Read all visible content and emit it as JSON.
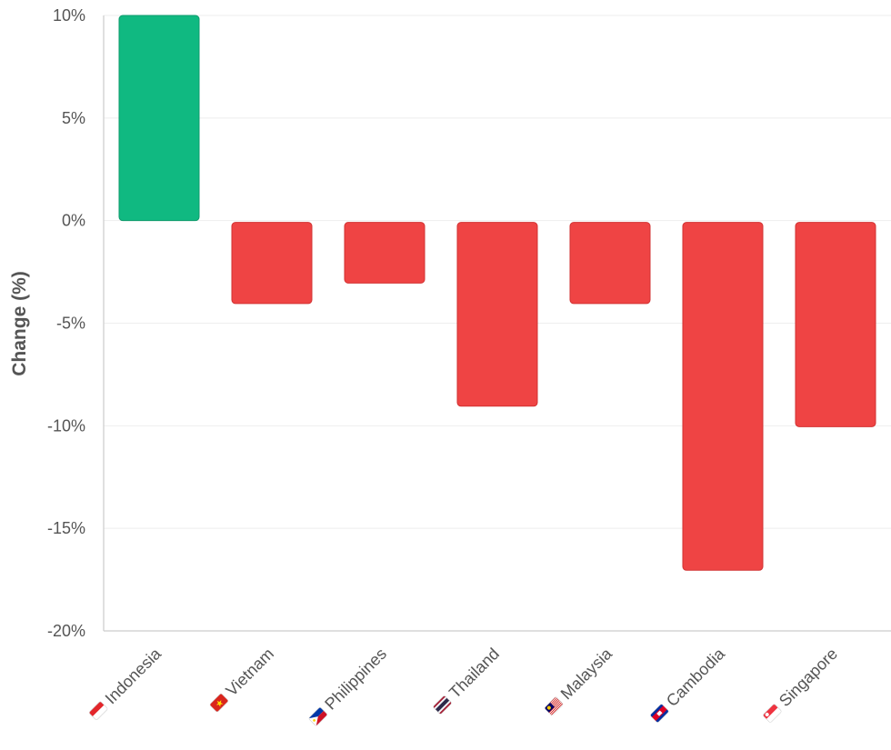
{
  "chart_data": {
    "type": "bar",
    "title": "",
    "xlabel": "",
    "ylabel": "Change (%)",
    "ylim": [
      -20,
      10
    ],
    "yticks": [
      10,
      5,
      0,
      -5,
      -10,
      -15,
      -20
    ],
    "ytick_labels": [
      "10%",
      "5%",
      "0%",
      "-5%",
      "-10%",
      "-15%",
      "-20%"
    ],
    "grid": true,
    "categories": [
      "Indonesia",
      "Vietnam",
      "Philippines",
      "Thailand",
      "Malaysia",
      "Cambodia",
      "Singapore"
    ],
    "flag_icons": [
      "indonesia-flag-icon",
      "vietnam-flag-icon",
      "philippines-flag-icon",
      "thailand-flag-icon",
      "malaysia-flag-icon",
      "cambodia-flag-icon",
      "singapore-flag-icon"
    ],
    "values": [
      10,
      -4,
      -3,
      -9,
      -4,
      -17,
      -10
    ],
    "colors": {
      "positive": "#10b981",
      "positive_stroke": "#0e9a6c",
      "negative": "#ef4444",
      "negative_stroke": "#d23232",
      "grid": "#eeeeee",
      "axis": "#cccccc",
      "text": "#555555"
    }
  }
}
